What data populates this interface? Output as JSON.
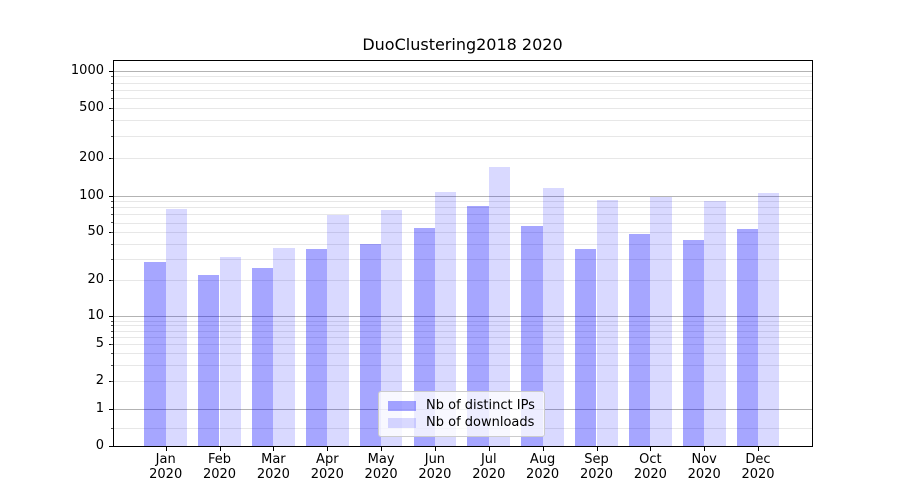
{
  "chart_data": {
    "type": "bar",
    "title": "DuoClustering2018 2020",
    "categories": [
      "Jan 2020",
      "Feb 2020",
      "Mar 2020",
      "Apr 2020",
      "May 2020",
      "Jun 2020",
      "Jul 2020",
      "Aug 2020",
      "Sep 2020",
      "Oct 2020",
      "Nov 2020",
      "Dec 2020"
    ],
    "series": [
      {
        "name": "Nb of distinct IPs",
        "color": "#0000FF59",
        "values": [
          28,
          22,
          25,
          36,
          40,
          54,
          83,
          56,
          36,
          48,
          43,
          53
        ]
      },
      {
        "name": "Nb of downloads",
        "color": "#0000FF26",
        "values": [
          77,
          31,
          37,
          69,
          76,
          108,
          170,
          115,
          93,
          97,
          90,
          105
        ]
      }
    ],
    "xlabel": "",
    "ylabel": "",
    "yscale": "symlog",
    "yticks": [
      0,
      1,
      2,
      5,
      10,
      20,
      50,
      100,
      200,
      500,
      1000
    ],
    "ylim": [
      0,
      1300
    ],
    "grid": true,
    "legend_position": "lower center"
  }
}
